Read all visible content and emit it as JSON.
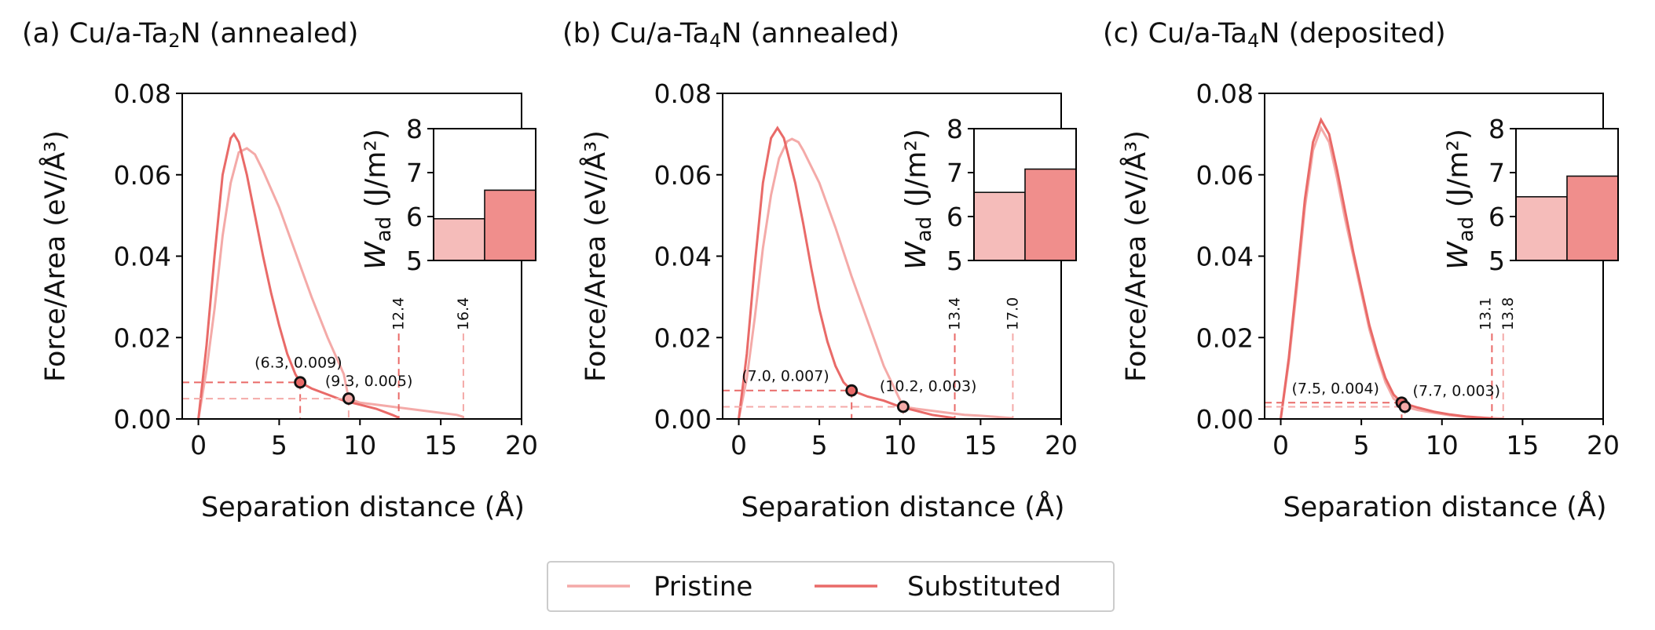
{
  "colors": {
    "pristine": "#f4aaa8",
    "substituted": "#e96a68",
    "pristine_bar": "#f5bcba",
    "substituted_bar": "#f08e8c",
    "axis": "#000000"
  },
  "legend": {
    "pristine": "Pristine",
    "substituted": "Substituted"
  },
  "chart_data": [
    {
      "type": "line",
      "panel_label": "(a)",
      "title_prefix": "(a) Cu/a-Ta",
      "title_sub": "2",
      "title_suffix": "N (annealed)",
      "xlabel": "Separation distance (Å)",
      "ylabel": "Force/Area (eV/Å³)",
      "xlim": [
        -1,
        20
      ],
      "ylim": [
        0,
        0.08
      ],
      "xticks": [
        0,
        5,
        10,
        15,
        20
      ],
      "xtick_labels": [
        "0",
        "5",
        "10",
        "15",
        "20"
      ],
      "yticks": [
        0,
        0.02,
        0.04,
        0.06,
        0.08
      ],
      "ytick_labels": [
        "0.00",
        "0.02",
        "0.04",
        "0.06",
        "0.08"
      ],
      "series": [
        {
          "name": "Pristine",
          "x": [
            0,
            0.5,
            1.0,
            1.5,
            2.0,
            2.5,
            3.0,
            3.5,
            4.0,
            5.0,
            6.0,
            7.0,
            8.0,
            9.0,
            9.3,
            10.0,
            11.0,
            12.0,
            13.0,
            14.0,
            15.0,
            16.0,
            16.4
          ],
          "y": [
            0,
            0.012,
            0.027,
            0.045,
            0.058,
            0.0655,
            0.0665,
            0.065,
            0.061,
            0.052,
            0.041,
            0.03,
            0.02,
            0.011,
            0.005,
            0.004,
            0.0035,
            0.003,
            0.0025,
            0.002,
            0.0015,
            0.001,
            0.0005
          ]
        },
        {
          "name": "Substituted",
          "x": [
            0,
            0.5,
            1.0,
            1.5,
            2.0,
            2.2,
            2.5,
            3.0,
            3.5,
            4.0,
            4.5,
            5.0,
            5.5,
            6.0,
            6.3,
            7.0,
            8.0,
            9.0,
            10.0,
            11.0,
            12.0,
            12.4
          ],
          "y": [
            0,
            0.018,
            0.04,
            0.06,
            0.069,
            0.07,
            0.068,
            0.06,
            0.05,
            0.04,
            0.031,
            0.023,
            0.016,
            0.011,
            0.009,
            0.0075,
            0.006,
            0.0045,
            0.0035,
            0.0025,
            0.001,
            0.0003
          ]
        }
      ],
      "annotations": [
        {
          "series": "Substituted",
          "x": 6.3,
          "y": 0.009,
          "label": "(6.3, 0.009)"
        },
        {
          "series": "Pristine",
          "x": 9.3,
          "y": 0.005,
          "label": "(9.3, 0.005)"
        }
      ],
      "cutoffs": [
        {
          "series": "Substituted",
          "x": 12.4,
          "label": "12.4"
        },
        {
          "series": "Pristine",
          "x": 16.4,
          "label": "16.4"
        }
      ],
      "inset": {
        "type": "bar",
        "ylabel_main": "W",
        "ylabel_sub": "ad",
        "ylabel_units": " (J/m²)",
        "ylim": [
          5,
          8
        ],
        "yticks": [
          5,
          6,
          7,
          8
        ],
        "ytick_labels": [
          "5",
          "6",
          "7",
          "8"
        ],
        "categories": [
          "Pristine",
          "Substituted"
        ],
        "values": [
          5.95,
          6.6
        ]
      }
    },
    {
      "type": "line",
      "panel_label": "(b)",
      "title_prefix": "(b) Cu/a-Ta",
      "title_sub": "4",
      "title_suffix": "N (annealed)",
      "xlabel": "Separation distance (Å)",
      "ylabel": "Force/Area (eV/Å³)",
      "xlim": [
        -1,
        20
      ],
      "ylim": [
        0,
        0.08
      ],
      "xticks": [
        0,
        5,
        10,
        15,
        20
      ],
      "xtick_labels": [
        "0",
        "5",
        "10",
        "15",
        "20"
      ],
      "yticks": [
        0,
        0.02,
        0.04,
        0.06,
        0.08
      ],
      "ytick_labels": [
        "0.00",
        "0.02",
        "0.04",
        "0.06",
        "0.08"
      ],
      "series": [
        {
          "name": "Pristine",
          "x": [
            0,
            0.5,
            1.0,
            1.5,
            2.0,
            2.5,
            3.0,
            3.3,
            3.7,
            4.0,
            5.0,
            6.0,
            7.0,
            8.0,
            9.0,
            10.2,
            11.0,
            12.0,
            13.0,
            14.0,
            15.0,
            16.0,
            17.0
          ],
          "y": [
            0,
            0.01,
            0.025,
            0.042,
            0.055,
            0.064,
            0.0682,
            0.0688,
            0.068,
            0.066,
            0.058,
            0.047,
            0.035,
            0.024,
            0.013,
            0.003,
            0.0025,
            0.002,
            0.0015,
            0.001,
            0.0008,
            0.0005,
            0.0002
          ]
        },
        {
          "name": "Substituted",
          "x": [
            0,
            0.5,
            1.0,
            1.5,
            2.0,
            2.4,
            2.8,
            3.5,
            4.0,
            4.5,
            5.0,
            5.5,
            6.0,
            6.5,
            7.0,
            8.0,
            9.0,
            10.0,
            11.0,
            12.0,
            13.4
          ],
          "y": [
            0,
            0.016,
            0.038,
            0.058,
            0.069,
            0.0715,
            0.069,
            0.058,
            0.048,
            0.037,
            0.027,
            0.019,
            0.013,
            0.009,
            0.007,
            0.0055,
            0.0045,
            0.003,
            0.002,
            0.001,
            0.0002
          ]
        }
      ],
      "annotations": [
        {
          "series": "Substituted",
          "x": 7.0,
          "y": 0.007,
          "label": "(7.0, 0.007)"
        },
        {
          "series": "Pristine",
          "x": 10.2,
          "y": 0.003,
          "label": "(10.2, 0.003)"
        }
      ],
      "cutoffs": [
        {
          "series": "Substituted",
          "x": 13.4,
          "label": "13.4"
        },
        {
          "series": "Pristine",
          "x": 17.0,
          "label": "17.0"
        }
      ],
      "inset": {
        "type": "bar",
        "ylabel_main": "W",
        "ylabel_sub": "ad",
        "ylabel_units": " (J/m²)",
        "ylim": [
          5,
          8
        ],
        "yticks": [
          5,
          6,
          7,
          8
        ],
        "ytick_labels": [
          "5",
          "6",
          "7",
          "8"
        ],
        "categories": [
          "Pristine",
          "Substituted"
        ],
        "values": [
          6.55,
          7.08
        ]
      }
    },
    {
      "type": "line",
      "panel_label": "(c)",
      "title_prefix": "(c) Cu/a-Ta",
      "title_sub": "4",
      "title_suffix": "N (deposited)",
      "xlabel": "Separation distance (Å)",
      "ylabel": "Force/Area (eV/Å³)",
      "xlim": [
        -1,
        20
      ],
      "ylim": [
        0,
        0.08
      ],
      "xticks": [
        0,
        5,
        10,
        15,
        20
      ],
      "xtick_labels": [
        "0",
        "5",
        "10",
        "15",
        "20"
      ],
      "yticks": [
        0,
        0.02,
        0.04,
        0.06,
        0.08
      ],
      "ytick_labels": [
        "0.00",
        "0.02",
        "0.04",
        "0.06",
        "0.08"
      ],
      "series": [
        {
          "name": "Pristine",
          "x": [
            0,
            0.5,
            1.0,
            1.5,
            2.0,
            2.5,
            3.0,
            3.5,
            4.0,
            4.5,
            5.0,
            5.5,
            6.0,
            6.5,
            7.0,
            7.7,
            8.5,
            9.5,
            10.5,
            11.5,
            12.5,
            13.8
          ],
          "y": [
            0,
            0.014,
            0.032,
            0.052,
            0.066,
            0.0715,
            0.068,
            0.059,
            0.049,
            0.04,
            0.031,
            0.022,
            0.015,
            0.009,
            0.005,
            0.003,
            0.0022,
            0.0015,
            0.0009,
            0.0005,
            0.0003,
            0.0001
          ]
        },
        {
          "name": "Substituted",
          "x": [
            0,
            0.5,
            1.0,
            1.5,
            2.0,
            2.5,
            3.0,
            3.5,
            4.0,
            4.5,
            5.0,
            5.5,
            6.0,
            6.5,
            7.0,
            7.5,
            8.5,
            9.5,
            10.5,
            11.5,
            12.5,
            13.1
          ],
          "y": [
            0,
            0.015,
            0.034,
            0.054,
            0.068,
            0.0735,
            0.07,
            0.061,
            0.051,
            0.041,
            0.032,
            0.023,
            0.016,
            0.01,
            0.006,
            0.004,
            0.0028,
            0.0018,
            0.0011,
            0.0006,
            0.0003,
            0.0001
          ]
        }
      ],
      "annotations": [
        {
          "series": "Substituted",
          "x": 7.5,
          "y": 0.004,
          "label": "(7.5, 0.004)"
        },
        {
          "series": "Pristine",
          "x": 7.7,
          "y": 0.003,
          "label": "(7.7, 0.003)"
        }
      ],
      "cutoffs": [
        {
          "series": "Substituted",
          "x": 13.1,
          "label": "13.1"
        },
        {
          "series": "Pristine",
          "x": 13.8,
          "label": "13.8"
        }
      ],
      "inset": {
        "type": "bar",
        "ylabel_main": "W",
        "ylabel_sub": "ad",
        "ylabel_units": " (J/m²)",
        "ylim": [
          5,
          8
        ],
        "yticks": [
          5,
          6,
          7,
          8
        ],
        "ytick_labels": [
          "5",
          "6",
          "7",
          "8"
        ],
        "categories": [
          "Pristine",
          "Substituted"
        ],
        "values": [
          6.45,
          6.92
        ]
      }
    }
  ]
}
